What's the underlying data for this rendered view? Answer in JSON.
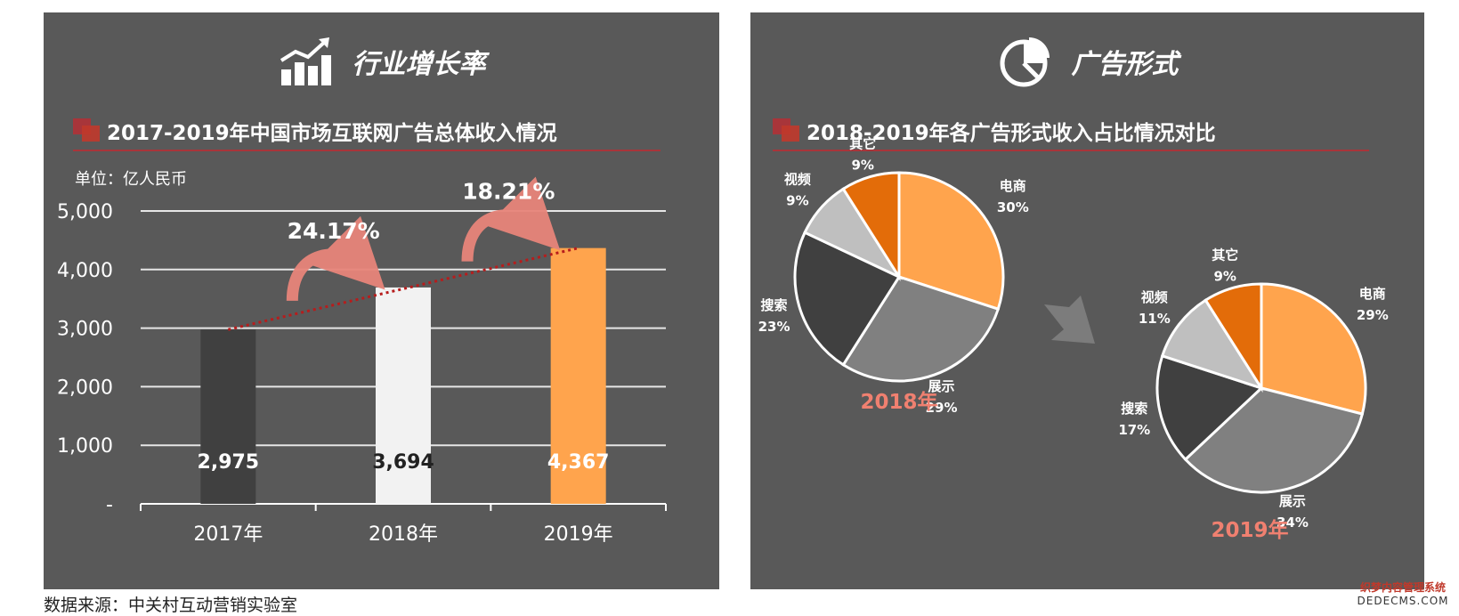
{
  "left_panel": {
    "title": "行业增长率",
    "icon": "bar-growth-icon",
    "subtitle": "2017-2019年中国市场互联网广告总体收入情况",
    "unit": "单位：亿人民币"
  },
  "right_panel": {
    "title": "广告形式",
    "icon": "pie-chart-icon",
    "subtitle": "2018-2019年各广告形式收入占比情况对比"
  },
  "source_note": "数据来源：中关村互动营销实验室",
  "watermark": {
    "line1": "织梦内容管理系统",
    "line2": "DEDECMS.COM"
  },
  "chart_data": [
    {
      "type": "bar",
      "categories": [
        "2017年",
        "2018年",
        "2019年"
      ],
      "values": [
        2975,
        3694,
        4367
      ],
      "value_labels": [
        "2,975",
        "3,694",
        "4,367"
      ],
      "bar_colors": [
        "#404040",
        "#f2f2f2",
        "#ffa44d"
      ],
      "value_label_colors": [
        "#ffffff",
        "#222222",
        "#ffffff"
      ],
      "ylim": [
        0,
        5000
      ],
      "yticks": [
        0,
        1000,
        2000,
        3000,
        4000,
        5000
      ],
      "ytick_labels": [
        "-",
        "1,000",
        "2,000",
        "3,000",
        "4,000",
        "5,000"
      ],
      "grid": true,
      "trend_line": true,
      "growth_rates": [
        {
          "from": "2017年",
          "to": "2018年",
          "label": "24.17%"
        },
        {
          "from": "2018年",
          "to": "2019年",
          "label": "18.21%"
        }
      ]
    },
    {
      "type": "pie",
      "year_label": "2018年",
      "slices": [
        {
          "name": "电商",
          "value": 30,
          "label": "30%",
          "color": "#ffa44d"
        },
        {
          "name": "展示",
          "value": 29,
          "label": "29%",
          "color": "#808080"
        },
        {
          "name": "搜索",
          "value": 23,
          "label": "23%",
          "color": "#404040"
        },
        {
          "name": "视频",
          "value": 9,
          "label": "9%",
          "color": "#bfbfbf"
        },
        {
          "name": "其它",
          "value": 9,
          "label": "9%",
          "color": "#e36c09"
        }
      ]
    },
    {
      "type": "pie",
      "year_label": "2019年",
      "slices": [
        {
          "name": "电商",
          "value": 29,
          "label": "29%",
          "color": "#ffa44d"
        },
        {
          "name": "展示",
          "value": 34,
          "label": "34%",
          "color": "#808080"
        },
        {
          "name": "搜索",
          "value": 17,
          "label": "17%",
          "color": "#404040"
        },
        {
          "name": "视频",
          "value": 11,
          "label": "11%",
          "color": "#bfbfbf"
        },
        {
          "name": "其它",
          "value": 9,
          "label": "9%",
          "color": "#e36c09"
        }
      ]
    }
  ]
}
